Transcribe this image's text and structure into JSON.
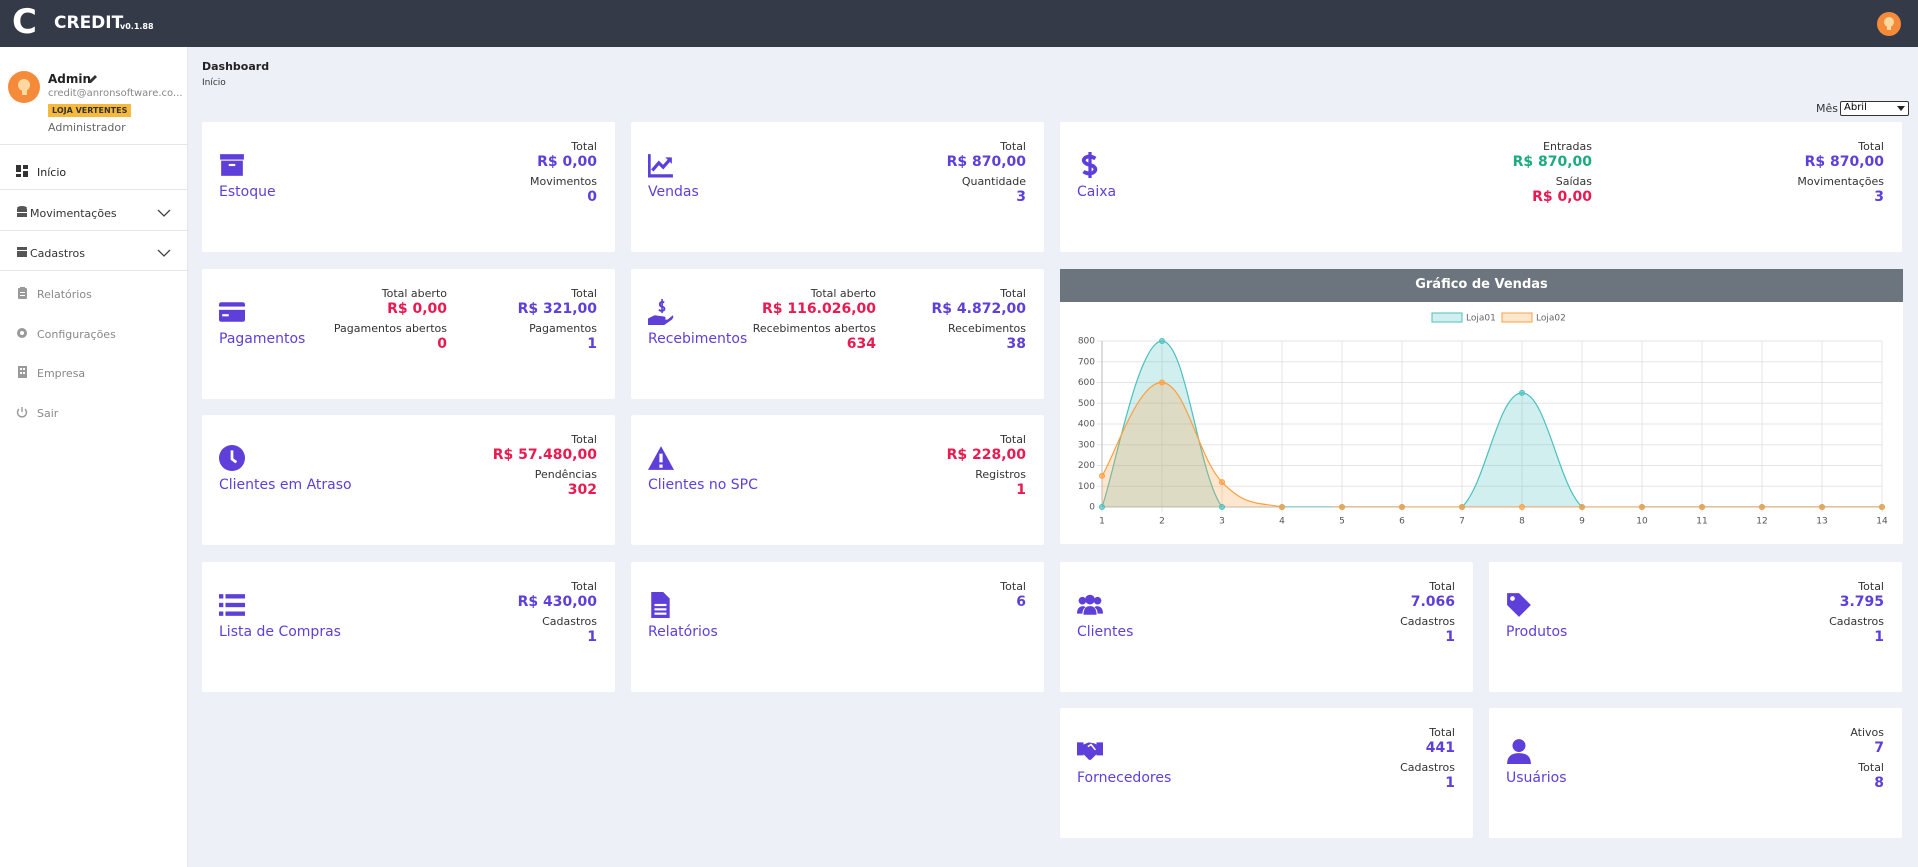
{
  "header": {
    "logo": "C",
    "brand": "CREDIT",
    "version": "v0.1.88"
  },
  "sidebar": {
    "user": {
      "name": "Admin",
      "email": "credit@anronsoftware.co...",
      "store": "LOJA VERTENTES",
      "role": "Administrador"
    },
    "menu": [
      {
        "label": "Início",
        "active": true
      },
      {
        "label": "Movimentações",
        "expandable": true
      },
      {
        "label": "Cadastros",
        "expandable": true
      },
      {
        "label": "Relatórios"
      },
      {
        "label": "Configurações"
      },
      {
        "label": "Empresa"
      },
      {
        "label": "Sair"
      }
    ]
  },
  "breadcrumb": {
    "title": "Dashboard",
    "current": "Início"
  },
  "filter": {
    "label": "Mês",
    "value": "Abril"
  },
  "cards": [
    {
      "title": "Estoque",
      "columns": [
        [
          {
            "label": "Total",
            "value": "R$ 0,00",
            "color": "#5e3fd9"
          },
          {
            "label": "Movimentos",
            "value": "0",
            "color": "#5e3fd9"
          }
        ]
      ]
    },
    {
      "title": "Vendas",
      "columns": [
        [
          {
            "label": "Total",
            "value": "R$ 870,00",
            "color": "#5e3fd9"
          },
          {
            "label": "Quantidade",
            "value": "3",
            "color": "#5e3fd9"
          }
        ]
      ]
    },
    {
      "title": "Caixa",
      "columns": [
        [
          {
            "label": "Entradas",
            "value": "R$ 870,00",
            "color": "#1aab80"
          },
          {
            "label": "Saídas",
            "value": "R$ 0,00",
            "color": "#e81a50"
          }
        ],
        [
          {
            "label": "Total",
            "value": "R$ 870,00",
            "color": "#5e3fd9"
          },
          {
            "label": "Movimentações",
            "value": "3",
            "color": "#5e3fd9"
          }
        ]
      ]
    },
    {
      "title": "Pagamentos",
      "columns": [
        [
          {
            "label": "Total aberto",
            "value": "R$ 0,00",
            "color": "#e81a50"
          },
          {
            "label": "Pagamentos abertos",
            "value": "0",
            "color": "#e81a50"
          }
        ],
        [
          {
            "label": "Total",
            "value": "R$ 321,00",
            "color": "#5e3fd9"
          },
          {
            "label": "Pagamentos",
            "value": "1",
            "color": "#5e3fd9"
          }
        ]
      ]
    },
    {
      "title": "Recebimentos",
      "columns": [
        [
          {
            "label": "Total aberto",
            "value": "R$ 116.026,00",
            "color": "#e81a50"
          },
          {
            "label": "Recebimentos abertos",
            "value": "634",
            "color": "#e81a50"
          }
        ],
        [
          {
            "label": "Total",
            "value": "R$ 4.872,00",
            "color": "#5e3fd9"
          },
          {
            "label": "Recebimentos",
            "value": "38",
            "color": "#5e3fd9"
          }
        ]
      ]
    },
    {
      "title": "Clientes em Atraso",
      "columns": [
        [
          {
            "label": "Total",
            "value": "R$ 57.480,00",
            "color": "#e81a50"
          },
          {
            "label": "Pendências",
            "value": "302",
            "color": "#e81a50"
          }
        ]
      ]
    },
    {
      "title": "Clientes no SPC",
      "columns": [
        [
          {
            "label": "Total",
            "value": "R$ 228,00",
            "color": "#e81a50"
          },
          {
            "label": "Registros",
            "value": "1",
            "color": "#e81a50"
          }
        ]
      ]
    },
    {
      "title": "Lista de Compras",
      "columns": [
        [
          {
            "label": "Total",
            "value": "R$ 430,00",
            "color": "#5e3fd9"
          },
          {
            "label": "Cadastros",
            "value": "1",
            "color": "#5e3fd9"
          }
        ]
      ]
    },
    {
      "title": "Relatórios",
      "columns": [
        [
          {
            "label": "Total",
            "value": "6",
            "color": "#5e3fd9"
          }
        ]
      ]
    },
    {
      "title": "Clientes",
      "columns": [
        [
          {
            "label": "Total",
            "value": "7.066",
            "color": "#5e3fd9"
          },
          {
            "label": "Cadastros",
            "value": "1",
            "color": "#5e3fd9"
          }
        ]
      ]
    },
    {
      "title": "Produtos",
      "columns": [
        [
          {
            "label": "Total",
            "value": "3.795",
            "color": "#5e3fd9"
          },
          {
            "label": "Cadastros",
            "value": "1",
            "color": "#5e3fd9"
          }
        ]
      ]
    },
    {
      "title": "Fornecedores",
      "columns": [
        [
          {
            "label": "Total",
            "value": "441",
            "color": "#5e3fd9"
          },
          {
            "label": "Cadastros",
            "value": "1",
            "color": "#5e3fd9"
          }
        ]
      ]
    },
    {
      "title": "Usuários",
      "columns": [
        [
          {
            "label": "Ativos",
            "value": "7",
            "color": "#5e3fd9"
          },
          {
            "label": "Total",
            "value": "8",
            "color": "#5e3fd9"
          }
        ]
      ]
    }
  ],
  "chart_data": {
    "type": "line",
    "title": "Gráfico de Vendas",
    "x": [
      1,
      2,
      3,
      4,
      5,
      6,
      7,
      8,
      9,
      10,
      11,
      12,
      13,
      14
    ],
    "xlim": [
      1,
      14
    ],
    "xticks": [
      1,
      2,
      3,
      4,
      5,
      6,
      7,
      8,
      9,
      10,
      11,
      12,
      13,
      14
    ],
    "ylim": [
      0,
      800
    ],
    "yticks": [
      0,
      100,
      200,
      300,
      400,
      500,
      600,
      700,
      800
    ],
    "grid": true,
    "legend": "top",
    "series": [
      {
        "name": "Loja01",
        "color": "#4bc0c0",
        "values": [
          0,
          800,
          0,
          0,
          0,
          0,
          0,
          550,
          0,
          0,
          0,
          0,
          0,
          0
        ]
      },
      {
        "name": "Loja02",
        "color": "#ff9f40",
        "values": [
          150,
          600,
          120,
          0,
          0,
          0,
          0,
          0,
          0,
          0,
          0,
          0,
          0,
          0
        ]
      }
    ]
  }
}
